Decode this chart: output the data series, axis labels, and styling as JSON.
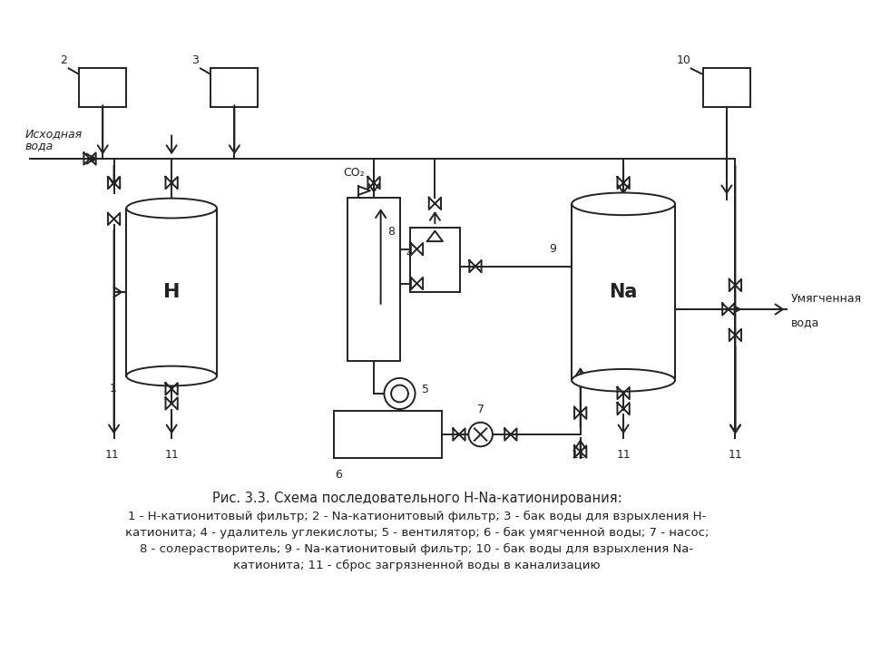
{
  "title": "Рис. 3.3. Схема последовательного Н-Na-катионирования:",
  "caption_lines": [
    "1 - Н-катионитовый фильтр; 2 - Na-катионитовый фильтр; 3 - бак воды для взрыхления Н-",
    "катионита; 4 - удалитель углекислоты; 5 - вентилятор; 6 - бак умягченной воды; 7 - насос;",
    "8 - солерастворитель; 9 - Na-катионитовый фильтр; 10 - бак воды для взрыхления Na-",
    "катионита; 11 - сброс загрязненной воды в канализацию"
  ],
  "bg_color": "#ffffff",
  "line_color": "#222222",
  "text_color": "#222222"
}
